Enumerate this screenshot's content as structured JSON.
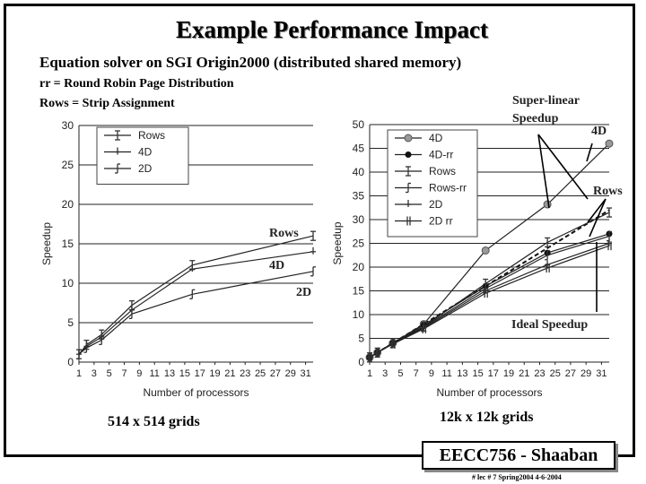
{
  "slide": {
    "title": "Example Performance Impact",
    "subtitle": "Equation solver on SGI Origin2000 (distributed shared memory)",
    "note1": "rr = Round Robin Page Distribution",
    "note2": "Rows = Strip Assignment",
    "footer": "EECC756 - Shaaban",
    "footer_note": "#  lec # 7   Spring2004  4-6-2004"
  },
  "chart_data": [
    {
      "type": "line",
      "caption": "514 x 514 grids",
      "xlabel": "Number of processors",
      "ylabel": "Speedup",
      "xlim": [
        1,
        31
      ],
      "ylim": [
        0,
        30
      ],
      "xticks": [
        1,
        3,
        5,
        7,
        9,
        11,
        13,
        15,
        17,
        19,
        21,
        23,
        25,
        27,
        29,
        31
      ],
      "yticks": [
        0,
        5,
        10,
        15,
        20,
        25,
        30
      ],
      "legend_position": "top-left",
      "series": [
        {
          "name": "Rows",
          "marker": "plus",
          "x": [
            1,
            2,
            4,
            8,
            16,
            32
          ],
          "y": [
            1,
            2.2,
            3.5,
            7.2,
            12.3,
            16
          ]
        },
        {
          "name": "4D",
          "marker": "tick",
          "x": [
            1,
            2,
            4,
            8,
            16,
            32
          ],
          "y": [
            1,
            2,
            3.2,
            6.6,
            11.8,
            14
          ]
        },
        {
          "name": "2D",
          "marker": "bracket",
          "x": [
            1,
            2,
            4,
            8,
            16,
            32
          ],
          "y": [
            1,
            1.8,
            2.8,
            6.1,
            8.6,
            11.5
          ]
        }
      ],
      "annotations": [
        "Rows",
        "4D",
        "2D"
      ]
    },
    {
      "type": "line",
      "caption": "12k x 12k grids",
      "xlabel": "Number of processors",
      "ylabel": "Speedup",
      "xlim": [
        1,
        31
      ],
      "ylim": [
        0,
        50
      ],
      "xticks": [
        1,
        3,
        5,
        7,
        9,
        11,
        13,
        15,
        17,
        19,
        21,
        23,
        25,
        27,
        29,
        31
      ],
      "yticks": [
        0,
        5,
        10,
        15,
        20,
        25,
        30,
        35,
        40,
        45,
        50
      ],
      "legend_position": "top-left",
      "series": [
        {
          "name": "4D",
          "marker": "circle-open",
          "x": [
            1,
            2,
            4,
            8,
            16,
            24,
            32
          ],
          "y": [
            1,
            2,
            4,
            8,
            23.5,
            33.2,
            46
          ]
        },
        {
          "name": "4D-rr",
          "marker": "circle-filled",
          "x": [
            1,
            2,
            4,
            8,
            16,
            24,
            32
          ],
          "y": [
            1,
            2,
            4,
            7.8,
            16,
            23,
            27
          ]
        },
        {
          "name": "Rows",
          "marker": "plus",
          "x": [
            1,
            2,
            4,
            8,
            16,
            24,
            32
          ],
          "y": [
            1,
            2,
            4,
            7.5,
            16.5,
            25.2,
            31.5
          ]
        },
        {
          "name": "Rows-rr",
          "marker": "bracket",
          "x": [
            1,
            2,
            4,
            8,
            16,
            24,
            32
          ],
          "y": [
            1,
            2,
            4,
            7.4,
            15.5,
            22.5,
            26.5
          ]
        },
        {
          "name": "2D",
          "marker": "tick",
          "x": [
            1,
            2,
            4,
            8,
            16,
            24,
            32
          ],
          "y": [
            1,
            2,
            4,
            7.2,
            15,
            20.5,
            25
          ]
        },
        {
          "name": "2D rr",
          "marker": "double",
          "x": [
            1,
            2,
            4,
            8,
            16,
            24,
            32
          ],
          "y": [
            1,
            2,
            3.8,
            7,
            14.5,
            19.8,
            24.5
          ]
        }
      ],
      "ideal": {
        "x": [
          1,
          32
        ],
        "y": [
          1,
          32
        ]
      },
      "annotations": [
        "Super-linear",
        "Speedup",
        "4D",
        "Rows",
        "Ideal Speedup"
      ]
    }
  ]
}
